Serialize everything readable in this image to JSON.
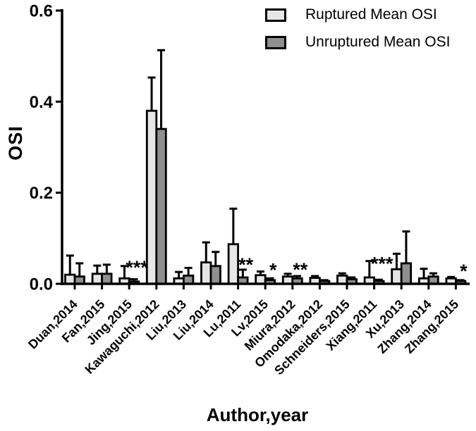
{
  "chart_data": {
    "type": "bar",
    "title": "",
    "xlabel": "Author,year",
    "ylabel": "OSI",
    "ylim": [
      0,
      0.6
    ],
    "yticks": [
      "0.0",
      "0.2",
      "0.4",
      "0.6"
    ],
    "ytick_values": [
      0,
      0.2,
      0.4,
      0.6
    ],
    "grid": false,
    "error_bars": "upper",
    "legend_position": "top-right",
    "categories": [
      "Duan,2014",
      "Fan,2015",
      "Jing,2015",
      "Kawaguchi,2012",
      "Liu,2013",
      "Liu,2014",
      "Lu,2011",
      "Lv,2015",
      "Miura,2012",
      "Omodaka,2012",
      "Schneiders,2015",
      "Xiang,2011",
      "Xu,2013",
      "Zhang,2014",
      "Zhang,2015"
    ],
    "series": [
      {
        "name": "Ruptured Mean OSI",
        "color": "#e6e6e6",
        "values": [
          0.02,
          0.022,
          0.012,
          0.38,
          0.012,
          0.047,
          0.087,
          0.019,
          0.016,
          0.013,
          0.018,
          0.014,
          0.032,
          0.012,
          0.012
        ],
        "errors": [
          0.042,
          0.018,
          0.027,
          0.073,
          0.014,
          0.044,
          0.078,
          0.008,
          0.006,
          0.004,
          0.005,
          0.036,
          0.034,
          0.021,
          0.003
        ]
      },
      {
        "name": "Unruptured Mean OSI",
        "color": "#8f8f8f",
        "values": [
          0.016,
          0.022,
          0.005,
          0.34,
          0.018,
          0.039,
          0.014,
          0.008,
          0.012,
          0.006,
          0.01,
          0.006,
          0.045,
          0.016,
          0.006
        ],
        "errors": [
          0.029,
          0.02,
          0.005,
          0.173,
          0.017,
          0.031,
          0.017,
          0.004,
          0.005,
          0.002,
          0.004,
          0.003,
          0.07,
          0.007,
          0.002
        ]
      }
    ],
    "significance": [
      {
        "category": "Jing,2015",
        "marker": "***",
        "y": 0.022
      },
      {
        "category": "Lu,2011",
        "marker": "**",
        "y": 0.028
      },
      {
        "category": "Lv,2015",
        "marker": "*",
        "y": 0.016
      },
      {
        "category": "Miura,2012",
        "marker": "**",
        "y": 0.017
      },
      {
        "category": "Xiang,2011",
        "marker": "***",
        "y": 0.03
      },
      {
        "category": "Zhang,2015",
        "marker": "*",
        "y": 0.014
      }
    ]
  },
  "colors": {
    "axis": "#000000",
    "ruptured_fill": "#e6e6e6",
    "unruptured_fill": "#8f8f8f",
    "background": "#ffffff"
  }
}
